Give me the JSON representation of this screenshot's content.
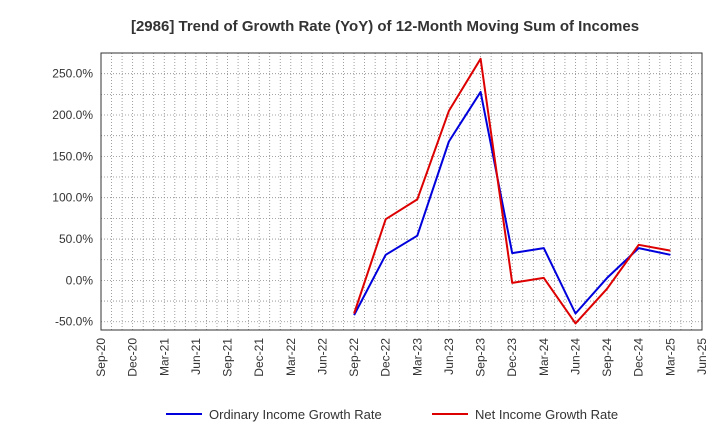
{
  "chart_data": {
    "type": "line",
    "title": "[2986]  Trend of Growth Rate (YoY) of 12-Month Moving Sum of Incomes",
    "xlabel": "",
    "ylabel": "",
    "x_ticks": [
      "Sep-20",
      "Dec-20",
      "Mar-21",
      "Jun-21",
      "Sep-21",
      "Dec-21",
      "Mar-22",
      "Jun-22",
      "Sep-22",
      "Dec-22",
      "Mar-23",
      "Jun-23",
      "Sep-23",
      "Dec-23",
      "Mar-24",
      "Jun-24",
      "Sep-24",
      "Dec-24",
      "Mar-25",
      "Jun-25"
    ],
    "y_ticks": [
      "250.0%",
      "200.0%",
      "150.0%",
      "100.0%",
      "50.0%",
      "0.0%",
      "-50.0%"
    ],
    "y_tick_values": [
      250,
      200,
      150,
      100,
      50,
      0,
      -50
    ],
    "ylim": [
      -60,
      275
    ],
    "grid": true,
    "legend_position": "bottom",
    "x": [
      "Sep-22",
      "Dec-22",
      "Mar-23",
      "Jun-23",
      "Sep-23",
      "Dec-23",
      "Mar-24",
      "Jun-24",
      "Sep-24",
      "Dec-24",
      "Mar-25"
    ],
    "series": [
      {
        "name": "Ordinary Income Growth Rate",
        "color": "#0000dd",
        "values": [
          -42,
          31,
          54,
          168,
          228,
          33,
          39,
          -40,
          3,
          39,
          31
        ]
      },
      {
        "name": "Net Income Growth Rate",
        "color": "#dd0000",
        "values": [
          -40,
          74,
          98,
          205,
          268,
          -3,
          3,
          -52,
          -10,
          43,
          36
        ]
      }
    ]
  }
}
